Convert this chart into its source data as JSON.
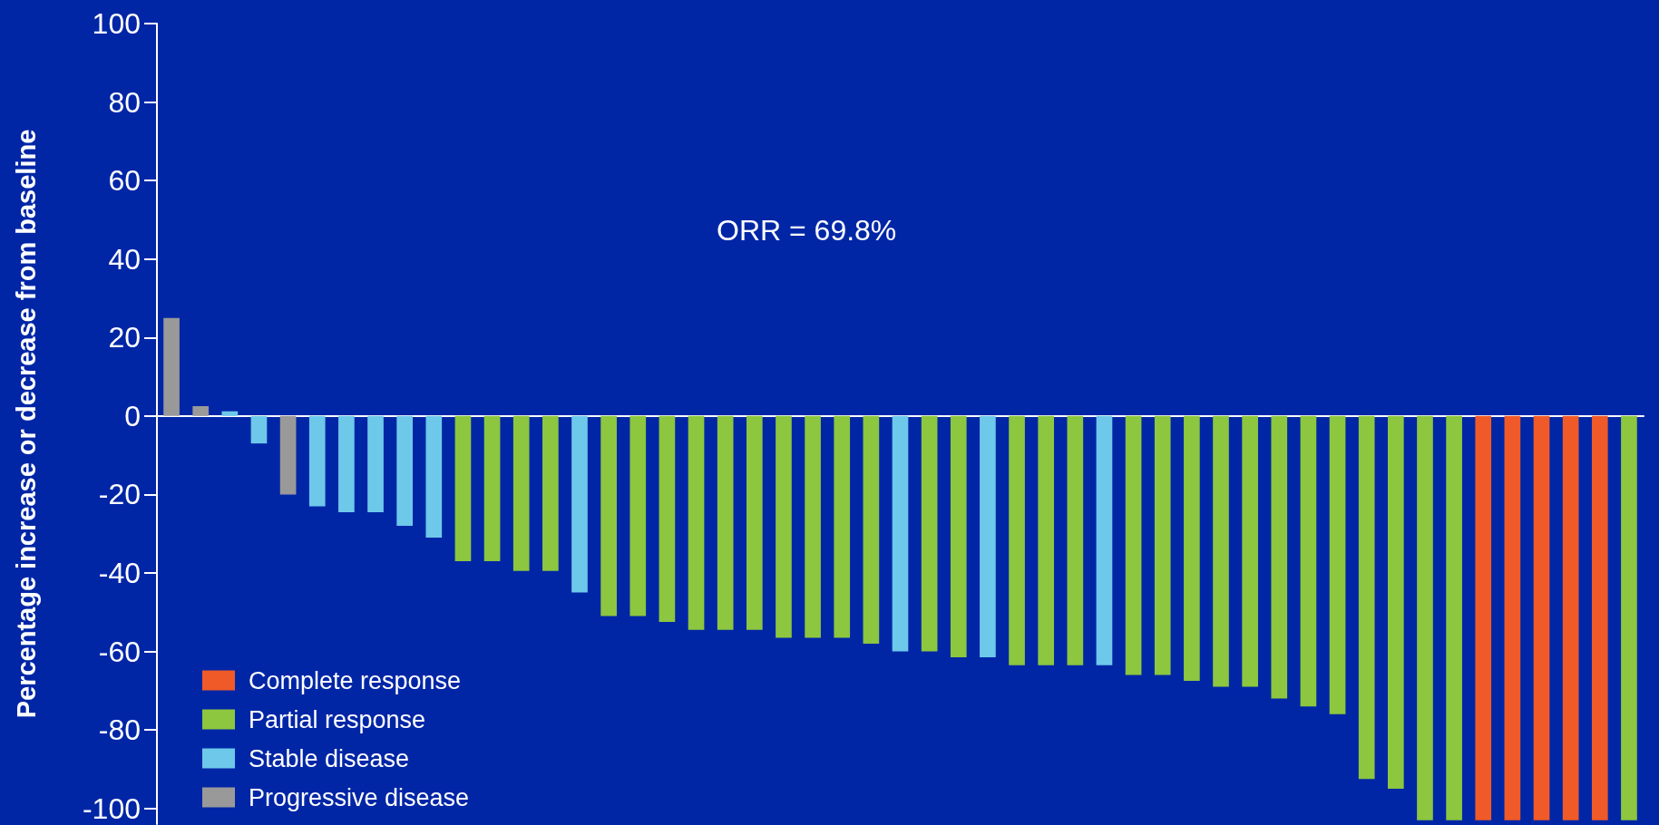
{
  "chart_data": {
    "type": "bar",
    "ylabel": "Percentage increase or decrease from baseline",
    "annotations": [
      "ORR = 69.8%"
    ],
    "categories": [
      null,
      null,
      null,
      null,
      null,
      null,
      null,
      null,
      null,
      null,
      null,
      null,
      null,
      null,
      null,
      null,
      null,
      null,
      null,
      null,
      null,
      null,
      null,
      null,
      null,
      null,
      null,
      null,
      null,
      null,
      null,
      null,
      null,
      null,
      null,
      null,
      null,
      null,
      null,
      null,
      null,
      null,
      null,
      null,
      null,
      null,
      null,
      null,
      null,
      null,
      null
    ],
    "series": [
      {
        "name": "Complete response",
        "color": "#f05a28",
        "values": [
          null,
          null,
          null,
          null,
          null,
          null,
          null,
          null,
          null,
          null,
          null,
          null,
          null,
          null,
          null,
          null,
          null,
          null,
          null,
          null,
          null,
          null,
          null,
          null,
          null,
          null,
          null,
          null,
          null,
          null,
          null,
          null,
          null,
          null,
          null,
          null,
          null,
          null,
          null,
          null,
          null,
          null,
          null,
          null,
          null,
          -103,
          -103,
          -103,
          -103,
          -103,
          null
        ]
      },
      {
        "name": "Partial response",
        "color": "#8dc63f",
        "values": [
          null,
          null,
          null,
          null,
          null,
          null,
          null,
          null,
          null,
          null,
          -37,
          -37,
          -39.5,
          -39.5,
          null,
          -51,
          -51,
          -52.5,
          -54.5,
          -54.5,
          -54.5,
          -56.5,
          -56.5,
          -56.5,
          -58,
          null,
          -60,
          -61.5,
          null,
          -63.5,
          -63.5,
          -63.5,
          null,
          -66,
          -66,
          -67.5,
          -69,
          -69,
          -72,
          -74,
          -76,
          -92.5,
          -95,
          -103,
          -103,
          null,
          null,
          null,
          null,
          null,
          -103
        ]
      },
      {
        "name": "Stable disease",
        "color": "#6dc8ea",
        "values": [
          null,
          null,
          1.2,
          -7,
          null,
          -23,
          -24.5,
          -24.5,
          -28,
          -31,
          null,
          null,
          null,
          null,
          -45,
          null,
          null,
          null,
          null,
          null,
          null,
          null,
          null,
          null,
          null,
          -60,
          null,
          null,
          -61.5,
          null,
          null,
          null,
          -63.5,
          null,
          null,
          null,
          null,
          null,
          null,
          null,
          null,
          null,
          null,
          null,
          null,
          null,
          null,
          null,
          null,
          null,
          null
        ]
      },
      {
        "name": "Progressive disease",
        "color": "#999999",
        "values": [
          25,
          2.5,
          null,
          null,
          -20,
          null,
          null,
          null,
          null,
          null,
          null,
          null,
          null,
          null,
          null,
          null,
          null,
          null,
          null,
          null,
          null,
          null,
          null,
          null,
          null,
          null,
          null,
          null,
          null,
          null,
          null,
          null,
          null,
          null,
          null,
          null,
          null,
          null,
          null,
          null,
          null,
          null,
          null,
          null,
          null,
          null,
          null,
          null,
          null,
          null,
          null
        ]
      }
    ],
    "ylim": [
      -104,
      100
    ],
    "yticks": [
      -100,
      -80,
      -60,
      -40,
      -20,
      0,
      20,
      40,
      60,
      80,
      100
    ],
    "legend": "bottom left",
    "tick_labels": "y"
  }
}
